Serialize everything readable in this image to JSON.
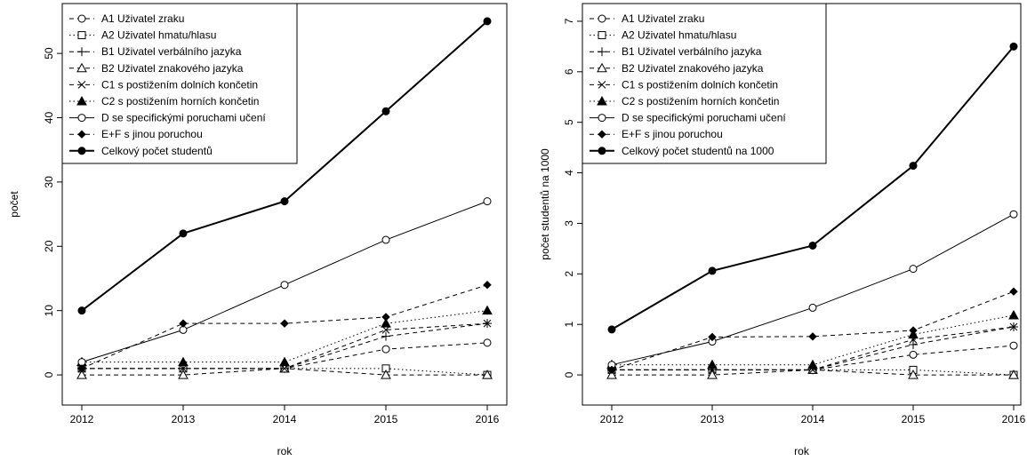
{
  "chart_data": [
    {
      "type": "line",
      "xlabel": "rok",
      "ylabel": "počet",
      "x": [
        2012,
        2013,
        2014,
        2015,
        2016
      ],
      "xticks": [
        "2012",
        "2013",
        "2014",
        "2015",
        "2016"
      ],
      "yticks": [
        "0",
        "10",
        "20",
        "30",
        "40",
        "50"
      ],
      "ylim": [
        0,
        55
      ],
      "legend_position": "top-left",
      "series": [
        {
          "name": "A1 Uživatel zraku",
          "values": [
            1,
            1,
            1,
            4,
            5
          ],
          "line": "dashed",
          "marker": "open-circle"
        },
        {
          "name": "A2 Uživatel hmatu/hlasu",
          "values": [
            1,
            1,
            1,
            1,
            0
          ],
          "line": "dotted",
          "marker": "open-square"
        },
        {
          "name": "B1 Uživatel verbálního jazyka",
          "values": [
            1,
            1,
            1,
            6,
            8
          ],
          "line": "dashed",
          "marker": "plus"
        },
        {
          "name": "B2 Uživatel znakového jazyka",
          "values": [
            0,
            0,
            1,
            0,
            0
          ],
          "line": "dashed",
          "marker": "open-triangle"
        },
        {
          "name": "C1 s postižením dolních končetin",
          "values": [
            1,
            1,
            1,
            7,
            8
          ],
          "line": "dashed",
          "marker": "cross"
        },
        {
          "name": "C2 s postižením horních končetin",
          "values": [
            2,
            2,
            2,
            8,
            10
          ],
          "line": "dotted",
          "marker": "filled-triangle"
        },
        {
          "name": "D se specifickými poruchami učení",
          "values": [
            2,
            7,
            14,
            21,
            27
          ],
          "line": "solid",
          "marker": "open-circle"
        },
        {
          "name": "E+F s jinou poruchou",
          "values": [
            1,
            8,
            8,
            9,
            14
          ],
          "line": "dashed",
          "marker": "filled-diamond"
        },
        {
          "name": "Celkový počet studentů",
          "values": [
            10,
            22,
            27,
            41,
            55
          ],
          "line": "solid-thick",
          "marker": "filled-circle"
        }
      ]
    },
    {
      "type": "line",
      "xlabel": "rok",
      "ylabel": "počet studentů na 1000",
      "x": [
        2012,
        2013,
        2014,
        2015,
        2016
      ],
      "xticks": [
        "2012",
        "2013",
        "2014",
        "2015",
        "2016"
      ],
      "yticks": [
        "0",
        "1",
        "2",
        "3",
        "4",
        "5",
        "6",
        "7"
      ],
      "ylim": [
        0,
        7
      ],
      "legend_position": "top-left",
      "series": [
        {
          "name": "A1 Uživatel zraku",
          "values": [
            0.1,
            0.1,
            0.1,
            0.4,
            0.58
          ],
          "line": "dashed",
          "marker": "open-circle"
        },
        {
          "name": "A2 Uživatel hmatu/hlasu",
          "values": [
            0.1,
            0.1,
            0.1,
            0.1,
            0.0
          ],
          "line": "dotted",
          "marker": "open-square"
        },
        {
          "name": "B1 Uživatel verbálního jazyka",
          "values": [
            0.1,
            0.1,
            0.1,
            0.6,
            0.95
          ],
          "line": "dashed",
          "marker": "plus"
        },
        {
          "name": "B2 Uživatel znakového jazyka",
          "values": [
            0.0,
            0.0,
            0.1,
            0.0,
            0.0
          ],
          "line": "dashed",
          "marker": "open-triangle"
        },
        {
          "name": "C1 s postižením dolních končetin",
          "values": [
            0.1,
            0.1,
            0.1,
            0.7,
            0.95
          ],
          "line": "dashed",
          "marker": "cross"
        },
        {
          "name": "C2 s postižením horních končetin",
          "values": [
            0.2,
            0.2,
            0.2,
            0.8,
            1.18
          ],
          "line": "dotted",
          "marker": "filled-triangle"
        },
        {
          "name": "D se specifickými poruchami učení",
          "values": [
            0.2,
            0.66,
            1.33,
            2.1,
            3.18
          ],
          "line": "solid",
          "marker": "open-circle"
        },
        {
          "name": "E+F s jinou poruchou",
          "values": [
            0.1,
            0.75,
            0.76,
            0.88,
            1.65
          ],
          "line": "dashed",
          "marker": "filled-diamond"
        },
        {
          "name": "Celkový počet studentů na 1000",
          "values": [
            0.9,
            2.06,
            2.56,
            4.14,
            6.5
          ],
          "line": "solid-thick",
          "marker": "filled-circle"
        }
      ]
    }
  ]
}
